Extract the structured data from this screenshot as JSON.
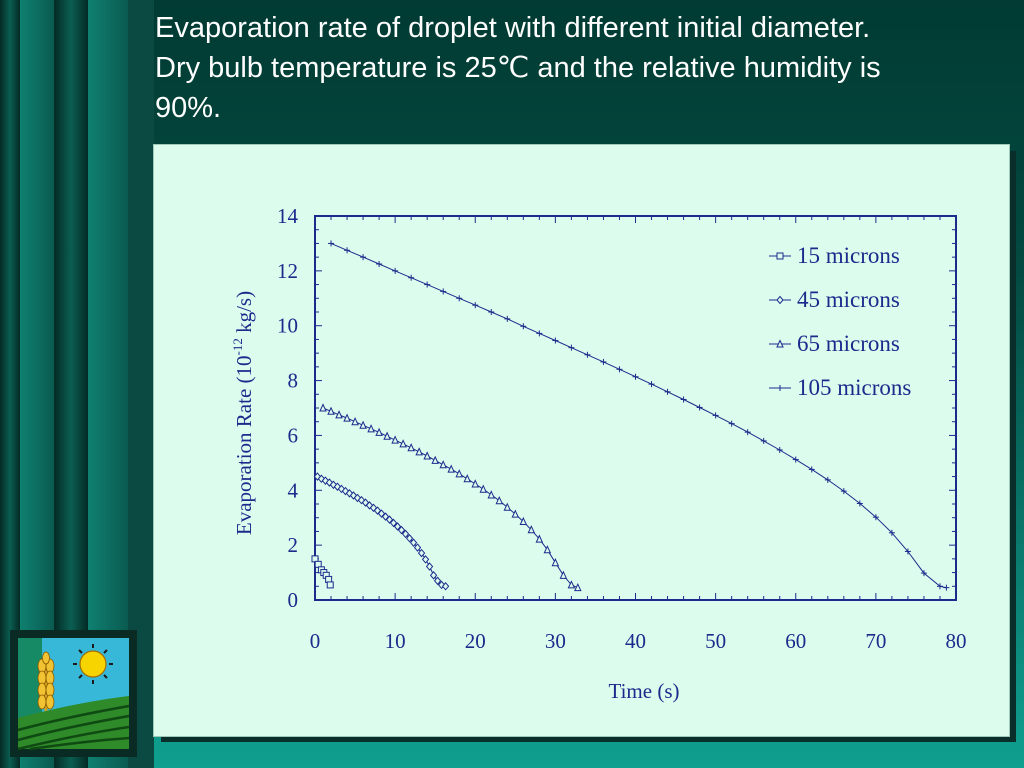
{
  "slide": {
    "title_line1": "Evaporation rate of droplet with different initial diameter.",
    "title_line2": "Dry bulb temperature is 25℃ and the relative humidity is",
    "title_line3": "90%."
  },
  "colors": {
    "background": "#0b6b5e",
    "panel": "#dcfcee",
    "ink": "#1c2a8c",
    "title_text": "#ffffff"
  },
  "logo": {
    "icon": "sun-and-wheat-field-logo"
  },
  "chart_data": {
    "type": "line",
    "title": "",
    "xlabel": "Time (s)",
    "ylabel": "Evaporation Rate (10",
    "ylabel_sup": "-12",
    "ylabel_tail": " kg/s)",
    "xlim": [
      0,
      80
    ],
    "ylim": [
      0,
      14
    ],
    "xticks": [
      0,
      10,
      20,
      30,
      40,
      50,
      60,
      70,
      80
    ],
    "yticks": [
      0,
      2,
      4,
      6,
      8,
      10,
      12,
      14
    ],
    "grid": false,
    "legend_position": "top-right",
    "series": [
      {
        "name": "15 microns",
        "marker": "square",
        "x": [
          0.0,
          0.4,
          0.8,
          1.1,
          1.4,
          1.7,
          1.9
        ],
        "y": [
          1.5,
          1.3,
          1.1,
          1.0,
          0.9,
          0.75,
          0.55
        ]
      },
      {
        "name": "45 microns",
        "marker": "diamond",
        "x": [
          0.3,
          0.8,
          1.3,
          1.8,
          2.3,
          2.8,
          3.3,
          3.8,
          4.3,
          4.8,
          5.3,
          5.8,
          6.3,
          6.8,
          7.3,
          7.8,
          8.3,
          8.8,
          9.3,
          9.8,
          10.3,
          10.8,
          11.3,
          11.8,
          12.3,
          12.8,
          13.3,
          13.8,
          14.3,
          14.8,
          15.3,
          15.8,
          16.3
        ],
        "y": [
          4.5,
          4.42,
          4.35,
          4.28,
          4.2,
          4.13,
          4.05,
          3.97,
          3.89,
          3.81,
          3.72,
          3.64,
          3.55,
          3.45,
          3.36,
          3.26,
          3.15,
          3.04,
          2.93,
          2.81,
          2.68,
          2.55,
          2.41,
          2.25,
          2.09,
          1.91,
          1.71,
          1.48,
          1.22,
          0.9,
          0.7,
          0.55,
          0.5
        ]
      },
      {
        "name": "65 microns",
        "marker": "triangle",
        "x": [
          1.0,
          2.0,
          3.0,
          4.0,
          5.0,
          6.0,
          7.0,
          8.0,
          9.0,
          10.0,
          11.0,
          12.0,
          13.0,
          14.0,
          15.0,
          16.0,
          17.0,
          18.0,
          19.0,
          20.0,
          21.0,
          22.0,
          23.0,
          24.0,
          25.0,
          26.0,
          27.0,
          28.0,
          29.0,
          30.0,
          31.0,
          32.0,
          32.8
        ],
        "y": [
          7.0,
          6.88,
          6.75,
          6.63,
          6.5,
          6.37,
          6.24,
          6.11,
          5.97,
          5.83,
          5.69,
          5.55,
          5.4,
          5.25,
          5.09,
          4.93,
          4.77,
          4.6,
          4.42,
          4.23,
          4.04,
          3.83,
          3.62,
          3.38,
          3.13,
          2.86,
          2.56,
          2.22,
          1.83,
          1.36,
          0.9,
          0.55,
          0.45
        ]
      },
      {
        "name": "105 microns",
        "marker": "plus",
        "x": [
          2.0,
          4.0,
          6.0,
          8.0,
          10.0,
          12.0,
          14.0,
          16.0,
          18.0,
          20.0,
          22.0,
          24.0,
          26.0,
          28.0,
          30.0,
          32.0,
          34.0,
          36.0,
          38.0,
          40.0,
          42.0,
          44.0,
          46.0,
          48.0,
          50.0,
          52.0,
          54.0,
          56.0,
          58.0,
          60.0,
          62.0,
          64.0,
          66.0,
          68.0,
          70.0,
          72.0,
          74.0,
          76.0,
          78.0,
          78.8
        ],
        "y": [
          13.0,
          12.75,
          12.5,
          12.25,
          12.0,
          11.75,
          11.5,
          11.25,
          11.0,
          10.75,
          10.5,
          10.25,
          9.98,
          9.72,
          9.46,
          9.2,
          8.94,
          8.68,
          8.41,
          8.14,
          7.87,
          7.59,
          7.31,
          7.02,
          6.73,
          6.43,
          6.12,
          5.8,
          5.47,
          5.12,
          4.76,
          4.38,
          3.97,
          3.52,
          3.02,
          2.45,
          1.77,
          0.98,
          0.5,
          0.45
        ]
      }
    ]
  }
}
